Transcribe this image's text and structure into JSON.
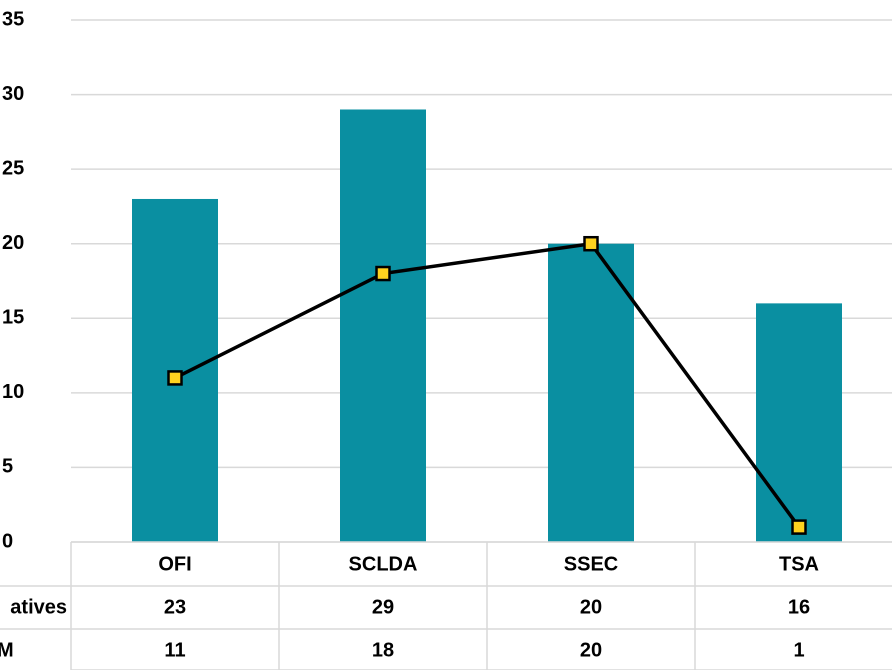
{
  "chart_data": {
    "type": "bar-line",
    "categories": [
      "OFI",
      "SCLDA",
      "SSEC",
      "TSA"
    ],
    "series": [
      {
        "name": "atives",
        "type": "bar",
        "color": "#0a8fa1",
        "values": [
          23,
          29,
          20,
          16
        ]
      },
      {
        "name": "M",
        "type": "line",
        "color": "#000000",
        "marker_color": "#ffd21f",
        "values": [
          11,
          18,
          20,
          1
        ]
      }
    ],
    "ylim": [
      0,
      35
    ],
    "yticks": [
      0,
      5,
      10,
      15,
      20,
      25,
      30,
      35
    ],
    "grid": true,
    "data_table": true
  }
}
